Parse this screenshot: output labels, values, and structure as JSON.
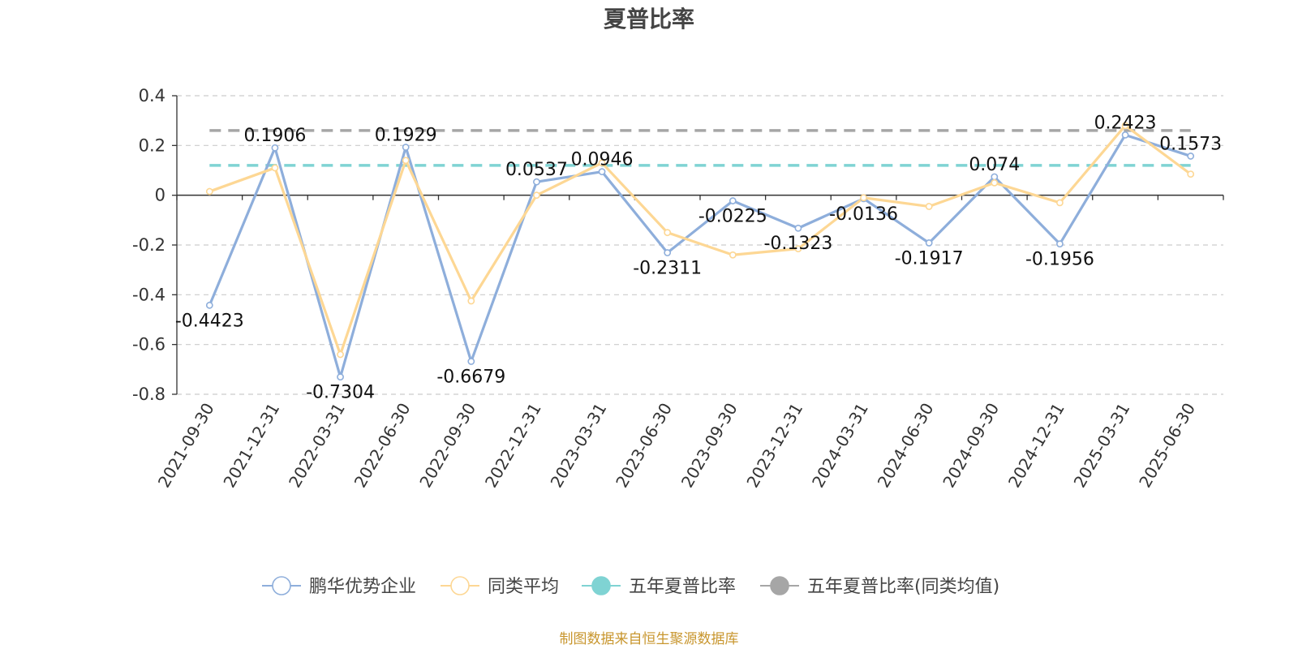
{
  "chart_data": {
    "type": "line",
    "title": "夏普比率",
    "categories": [
      "2021-09-30",
      "2021-12-31",
      "2022-03-31",
      "2022-06-30",
      "2022-09-30",
      "2022-12-31",
      "2023-03-31",
      "2023-06-30",
      "2023-09-30",
      "2023-12-31",
      "2024-03-31",
      "2024-06-30",
      "2024-09-30",
      "2024-12-31",
      "2025-03-31",
      "2025-06-30"
    ],
    "ylim": [
      -0.8,
      0.4
    ],
    "yticks": [
      0.4,
      0.2,
      0,
      -0.2,
      -0.4,
      -0.6,
      -0.8
    ],
    "ytick_labels": [
      "0.4",
      "0.2",
      "0",
      "-0.2",
      "-0.4",
      "-0.6",
      "-0.8"
    ],
    "grid": true,
    "series": [
      {
        "name": "鹏华优势企业",
        "color": "#8eaedb",
        "values": [
          -0.4423,
          0.1906,
          -0.7304,
          0.1929,
          -0.6679,
          0.0537,
          0.0946,
          -0.2311,
          -0.0225,
          -0.1323,
          -0.0136,
          -0.1917,
          0.074,
          -0.1956,
          0.2423,
          0.1573
        ],
        "value_labels": [
          "-0.4423",
          "0.1906",
          "-0.7304",
          "0.1929",
          "-0.6679",
          "0.0537",
          "0.0946",
          "-0.2311",
          "-0.0225",
          "-0.1323",
          "-0.0136",
          "-0.1917",
          "0.074",
          "-0.1956",
          "0.2423",
          "0.1573"
        ]
      },
      {
        "name": "同类平均",
        "color": "#fdd794",
        "values": [
          0.015,
          0.11,
          -0.64,
          0.14,
          -0.425,
          0.0,
          0.13,
          -0.15,
          -0.24,
          -0.215,
          -0.01,
          -0.045,
          0.05,
          -0.03,
          0.28,
          0.085
        ]
      },
      {
        "name": "五年夏普比率",
        "color": "#7fd3d3",
        "constant": 0.12,
        "style": "dashed"
      },
      {
        "name": "五年夏普比率(同类均值)",
        "color": "#a6a6a6",
        "constant": 0.26,
        "style": "dashed"
      }
    ],
    "legend_position": "bottom"
  },
  "source_note": "制图数据来自恒生聚源数据库"
}
